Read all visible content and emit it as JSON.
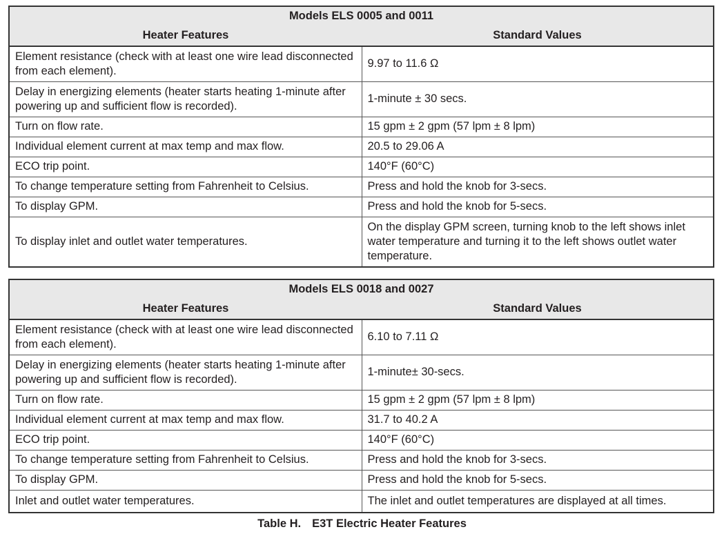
{
  "tables": [
    {
      "title": "Models ELS 0005 and 0011",
      "col1": "Heater Features",
      "col2": "Standard Values",
      "rows": [
        [
          "Element resistance (check with at least one wire lead disconnected from each element).",
          "9.97 to 11.6 Ω"
        ],
        [
          "Delay in energizing elements (heater starts heating 1-minute after powering up and sufficient flow is recorded).",
          "1-minute ± 30 secs."
        ],
        [
          "Turn on flow rate.",
          "15 gpm ± 2 gpm (57 lpm ± 8 lpm)"
        ],
        [
          "Individual element current at max temp and max flow.",
          "20.5 to 29.06 A"
        ],
        [
          "ECO trip point.",
          "140°F (60°C)"
        ],
        [
          "To change temperature setting from Fahrenheit to Celsius.",
          "Press and hold the knob for 3-secs."
        ],
        [
          "To display GPM.",
          "Press and hold the knob for 5-secs."
        ],
        [
          "To display inlet and outlet water temperatures.",
          "On the display GPM screen, turning knob to the left shows inlet water temperature and turning it to the left shows outlet water temperature."
        ]
      ]
    },
    {
      "title": "Models ELS 0018 and 0027",
      "col1": "Heater Features",
      "col2": "Standard Values",
      "rows": [
        [
          "Element resistance (check with at least one wire lead disconnected from each element).",
          "6.10 to 7.11 Ω"
        ],
        [
          "Delay in energizing elements (heater starts heating 1-minute after powering up and sufficient flow is recorded).",
          "1-minute± 30-secs."
        ],
        [
          "Turn on flow rate.",
          "15 gpm ± 2 gpm (57 lpm ± 8 lpm)"
        ],
        [
          "Individual element current at max temp and max flow.",
          "31.7 to 40.2 A"
        ],
        [
          "ECO trip point.",
          "140°F (60°C)"
        ],
        [
          "To change temperature setting from Fahrenheit to Celsius.",
          "Press and hold the knob for 3-secs."
        ],
        [
          "To display GPM.",
          "Press and hold the knob for 5-secs."
        ],
        [
          "Inlet and outlet water temperatures.",
          "The inlet and outlet temperatures are displayed at all times."
        ]
      ]
    }
  ],
  "caption": {
    "label": "Table H.",
    "text": "E3T Electric Heater Features"
  }
}
